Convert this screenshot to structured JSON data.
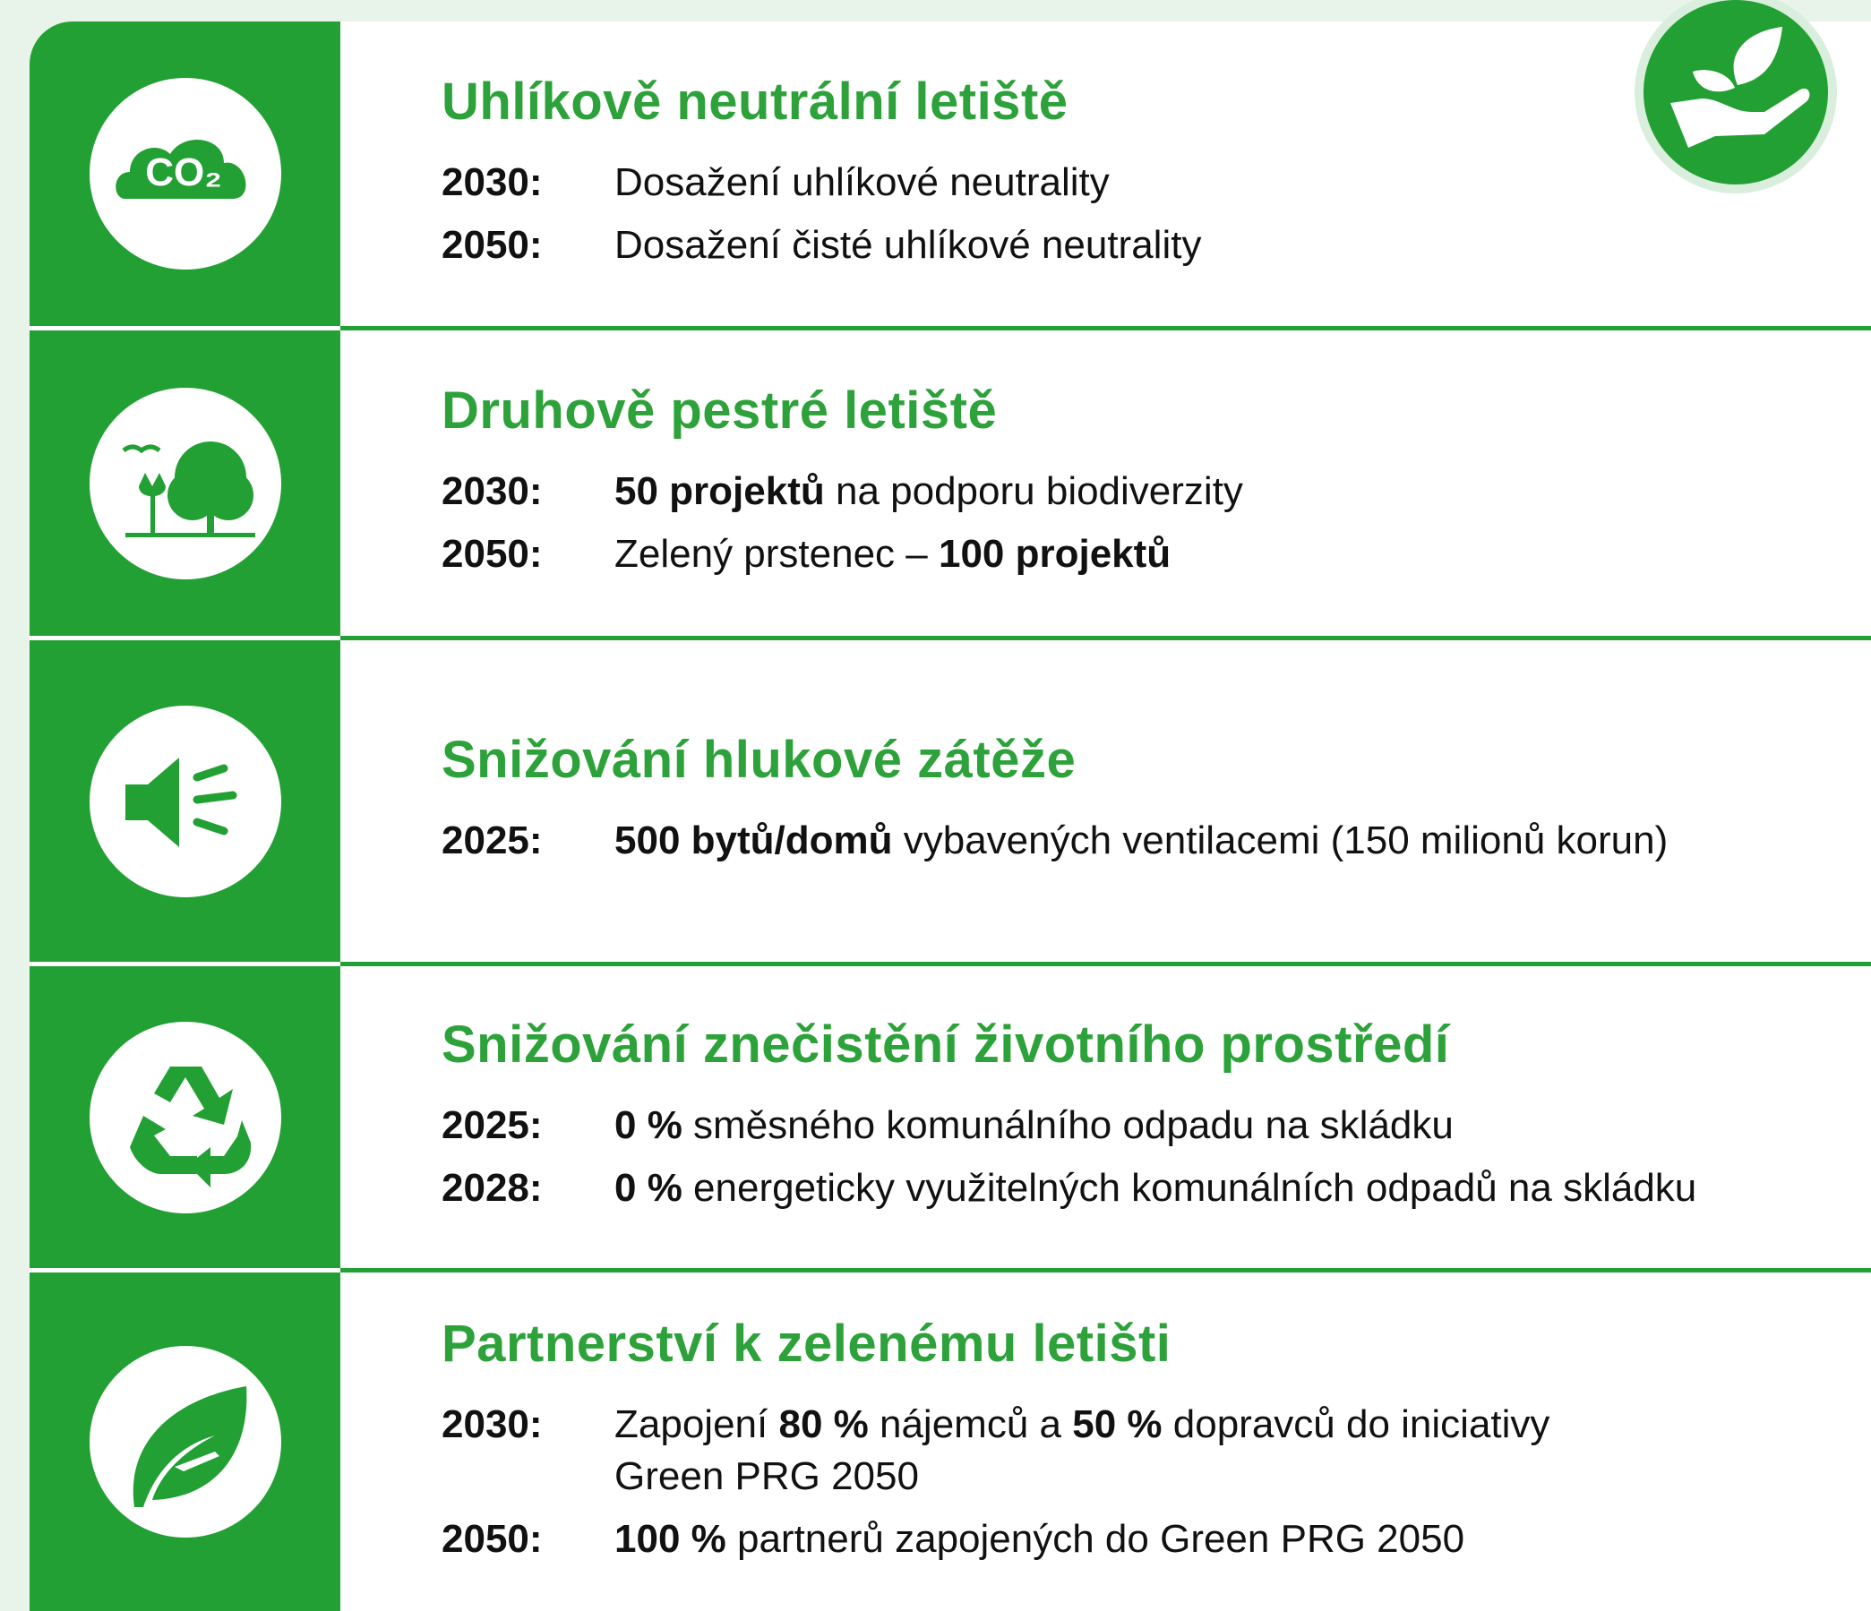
{
  "rows": [
    {
      "title": "Uhlíkově neutrální letiště",
      "icon_text": "CO₂",
      "items": [
        {
          "year": "2030:",
          "lines": [
            [
              {
                "text": "Dosažení uhlíkové neutrality"
              }
            ]
          ]
        },
        {
          "year": "2050:",
          "lines": [
            [
              {
                "text": "Dosažení čisté uhlíkové neutrality"
              }
            ]
          ]
        }
      ]
    },
    {
      "title": "Druhově pestré letiště",
      "items": [
        {
          "year": "2030:",
          "lines": [
            [
              {
                "text": "50 projektů",
                "bold": true
              },
              {
                "text": " na podporu biodiverzity"
              }
            ]
          ]
        },
        {
          "year": "2050:",
          "lines": [
            [
              {
                "text": "Zelený prstenec – "
              },
              {
                "text": "100 projektů",
                "bold": true
              }
            ]
          ]
        }
      ]
    },
    {
      "title": "Snižování hlukové zátěže",
      "items": [
        {
          "year": "2025:",
          "lines": [
            [
              {
                "text": "500 bytů/domů",
                "bold": true
              },
              {
                "text": " vybavených ventilacemi (150 milionů korun)"
              }
            ]
          ]
        }
      ]
    },
    {
      "title": "Snižování znečistění životního prostředí",
      "items": [
        {
          "year": "2025:",
          "lines": [
            [
              {
                "text": "0 %",
                "bold": true
              },
              {
                "text": " směsného komunálního odpadu na skládku"
              }
            ]
          ]
        },
        {
          "year": "2028:",
          "lines": [
            [
              {
                "text": "0 %",
                "bold": true
              },
              {
                "text": " energeticky využitelných komunálních odpadů na skládku"
              }
            ]
          ]
        }
      ]
    },
    {
      "title": "Partnerství k zelenému letišti",
      "items": [
        {
          "year": "2030:",
          "lines": [
            [
              {
                "text": "Zapojení "
              },
              {
                "text": "80 %",
                "bold": true
              },
              {
                "text": " nájemců a "
              },
              {
                "text": "50 %",
                "bold": true
              },
              {
                "text": " dopravců do iniciativy"
              }
            ],
            [
              {
                "text": "Green PRG 2050"
              }
            ]
          ]
        },
        {
          "year": "2050:",
          "lines": [
            [
              {
                "text": "100 %",
                "bold": true
              },
              {
                "text": " partnerů zapojených do Green PRG 2050"
              }
            ]
          ]
        }
      ]
    }
  ]
}
